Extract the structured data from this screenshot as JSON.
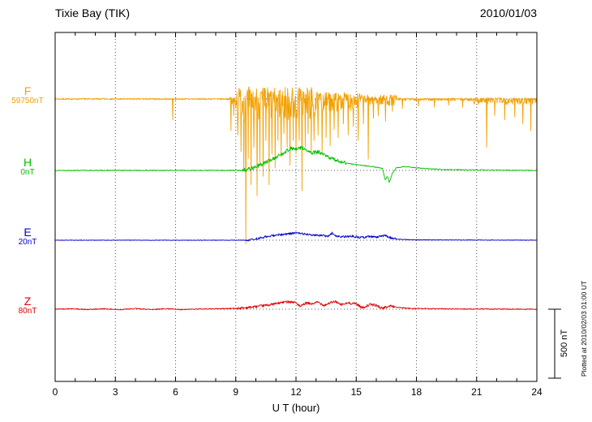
{
  "header": {
    "title": "Tixie Bay (TIK)",
    "date": "2010/01/03"
  },
  "footer": {
    "xlabel": "U T (hour)"
  },
  "side": {
    "scale_label": "500 nT",
    "plotted_at": "Plotted at 2010/02/03 01:00 UT"
  },
  "chart_data": {
    "type": "line",
    "title": "Tixie Bay (TIK) magnetogram 2010/01/03",
    "xlabel": "U T (hour)",
    "x_range": [
      0,
      24
    ],
    "x_major_ticks": [
      0,
      3,
      6,
      9,
      12,
      15,
      18,
      21,
      24
    ],
    "x_minor_step": 1,
    "grid": "dotted-vertical-at-major-ticks",
    "scale_bar": {
      "nt": 500,
      "px": 85
    },
    "series": [
      {
        "name": "F",
        "value_label": "59750nT",
        "color": "#f4a000",
        "baseline_frac": 0.1907,
        "seed": 7,
        "envelope": [
          [
            0,
            0
          ],
          [
            24,
            0
          ]
        ],
        "noise": [
          [
            0,
            8.7,
            5,
            5
          ],
          [
            8.7,
            9.05,
            80,
            12
          ],
          [
            9.05,
            13.0,
            160,
            90
          ],
          [
            13.0,
            15.2,
            90,
            50
          ],
          [
            15.2,
            17.0,
            50,
            30
          ],
          [
            17.0,
            20.8,
            14,
            6
          ],
          [
            20.8,
            24,
            40,
            10
          ]
        ],
        "spikes": [
          [
            5.85,
            -150
          ],
          [
            8.75,
            -230
          ],
          [
            8.9,
            -120
          ],
          [
            9.1,
            -260
          ],
          [
            9.25,
            -380
          ],
          [
            9.4,
            -520
          ],
          [
            9.5,
            -1050
          ],
          [
            9.62,
            -430
          ],
          [
            9.75,
            -620
          ],
          [
            9.9,
            -350
          ],
          [
            10.05,
            -700
          ],
          [
            10.2,
            -460
          ],
          [
            10.35,
            -560
          ],
          [
            10.5,
            -300
          ],
          [
            10.65,
            -620
          ],
          [
            10.8,
            -400
          ],
          [
            10.95,
            -500
          ],
          [
            11.1,
            -300
          ],
          [
            11.25,
            -420
          ],
          [
            11.4,
            -250
          ],
          [
            11.55,
            -350
          ],
          [
            11.7,
            -480
          ],
          [
            11.85,
            -300
          ],
          [
            12.0,
            -400
          ],
          [
            12.15,
            -300
          ],
          [
            12.3,
            -665
          ],
          [
            12.45,
            -350
          ],
          [
            12.6,
            -250
          ],
          [
            12.75,
            -400
          ],
          [
            12.9,
            -300
          ],
          [
            13.1,
            -260
          ],
          [
            13.3,
            -380
          ],
          [
            13.5,
            -280
          ],
          [
            13.7,
            -340
          ],
          [
            13.9,
            -220
          ],
          [
            14.1,
            -280
          ],
          [
            14.35,
            -180
          ],
          [
            14.6,
            -260
          ],
          [
            14.85,
            -200
          ],
          [
            15.1,
            -300
          ],
          [
            15.35,
            -180
          ],
          [
            15.6,
            -435
          ],
          [
            15.85,
            -140
          ],
          [
            16.1,
            -120
          ],
          [
            16.45,
            -160
          ],
          [
            16.8,
            -90
          ],
          [
            17.3,
            -70
          ],
          [
            18.1,
            -50
          ],
          [
            18.9,
            -60
          ],
          [
            19.6,
            -45
          ],
          [
            20.3,
            -60
          ],
          [
            21.5,
            -350
          ],
          [
            21.9,
            -120
          ],
          [
            22.4,
            -150
          ],
          [
            22.9,
            -130
          ],
          [
            23.3,
            -180
          ],
          [
            23.7,
            -230
          ]
        ]
      },
      {
        "name": "H",
        "value_label": "0nT",
        "color": "#00c000",
        "baseline_frac": 0.3953,
        "seed": 13,
        "envelope": [
          [
            0,
            0
          ],
          [
            9.3,
            0
          ],
          [
            9.8,
            15
          ],
          [
            10.3,
            45
          ],
          [
            10.8,
            80
          ],
          [
            11.2,
            110
          ],
          [
            11.5,
            140
          ],
          [
            11.8,
            162
          ],
          [
            12.0,
            150
          ],
          [
            12.3,
            168
          ],
          [
            12.5,
            145
          ],
          [
            12.8,
            125
          ],
          [
            13.1,
            135
          ],
          [
            13.4,
            110
          ],
          [
            13.8,
            85
          ],
          [
            14.2,
            65
          ],
          [
            14.7,
            48
          ],
          [
            15.2,
            38
          ],
          [
            15.8,
            28
          ],
          [
            16.3,
            15
          ],
          [
            16.45,
            -70
          ],
          [
            16.55,
            -40
          ],
          [
            16.65,
            -90
          ],
          [
            16.8,
            -20
          ],
          [
            17.0,
            18
          ],
          [
            17.4,
            28
          ],
          [
            17.8,
            22
          ],
          [
            18.5,
            12
          ],
          [
            19.5,
            6
          ],
          [
            21,
            3
          ],
          [
            24,
            0
          ]
        ],
        "noise": [
          [
            0,
            9.3,
            3,
            3
          ],
          [
            9.3,
            14.5,
            14,
            14
          ],
          [
            14.5,
            24,
            3,
            3
          ]
        ],
        "spikes": []
      },
      {
        "name": "E",
        "value_label": "20nT",
        "color": "#0000d0",
        "baseline_frac": 0.5953,
        "seed": 21,
        "envelope": [
          [
            0,
            0
          ],
          [
            9.6,
            0
          ],
          [
            10.1,
            12
          ],
          [
            10.6,
            28
          ],
          [
            11.1,
            38
          ],
          [
            11.6,
            46
          ],
          [
            12.0,
            52
          ],
          [
            12.4,
            46
          ],
          [
            12.8,
            40
          ],
          [
            13.2,
            34
          ],
          [
            13.6,
            30
          ],
          [
            13.8,
            52
          ],
          [
            14.0,
            28
          ],
          [
            14.4,
            24
          ],
          [
            14.8,
            30
          ],
          [
            15.2,
            18
          ],
          [
            15.6,
            26
          ],
          [
            16.0,
            22
          ],
          [
            16.4,
            34
          ],
          [
            16.7,
            18
          ],
          [
            17.0,
            8
          ],
          [
            17.5,
            4
          ],
          [
            18.2,
            2
          ],
          [
            24,
            0
          ]
        ],
        "noise": [
          [
            0,
            9.5,
            2,
            2
          ],
          [
            9.5,
            17,
            8,
            8
          ],
          [
            17,
            24,
            2,
            2
          ]
        ],
        "spikes": []
      },
      {
        "name": "Z",
        "value_label": "80nT",
        "color": "#e00000",
        "baseline_frac": 0.793,
        "seed": 42,
        "envelope": [
          [
            0,
            0
          ],
          [
            0.8,
            4
          ],
          [
            1.6,
            -3
          ],
          [
            2.4,
            3
          ],
          [
            3.2,
            -3
          ],
          [
            4.0,
            4
          ],
          [
            4.8,
            -2
          ],
          [
            5.6,
            4
          ],
          [
            6.2,
            -4
          ],
          [
            7.0,
            1
          ],
          [
            8.0,
            3
          ],
          [
            9.0,
            6
          ],
          [
            9.6,
            12
          ],
          [
            10.2,
            22
          ],
          [
            10.7,
            32
          ],
          [
            11.2,
            46
          ],
          [
            11.6,
            56
          ],
          [
            12.0,
            48
          ],
          [
            12.2,
            18
          ],
          [
            12.5,
            44
          ],
          [
            12.8,
            38
          ],
          [
            13.1,
            52
          ],
          [
            13.4,
            28
          ],
          [
            13.7,
            46
          ],
          [
            14.0,
            56
          ],
          [
            14.2,
            32
          ],
          [
            14.6,
            44
          ],
          [
            15.0,
            40
          ],
          [
            15.3,
            10
          ],
          [
            15.7,
            34
          ],
          [
            16.0,
            28
          ],
          [
            16.3,
            6
          ],
          [
            16.7,
            24
          ],
          [
            17.1,
            12
          ],
          [
            17.6,
            6
          ],
          [
            18.4,
            4
          ],
          [
            19.5,
            2
          ],
          [
            21,
            1
          ],
          [
            24,
            0
          ]
        ],
        "noise": [
          [
            0,
            9,
            3.5,
            3.5
          ],
          [
            9,
            17,
            9,
            9
          ],
          [
            17,
            24,
            3.5,
            3.5
          ]
        ],
        "spikes": []
      }
    ]
  }
}
